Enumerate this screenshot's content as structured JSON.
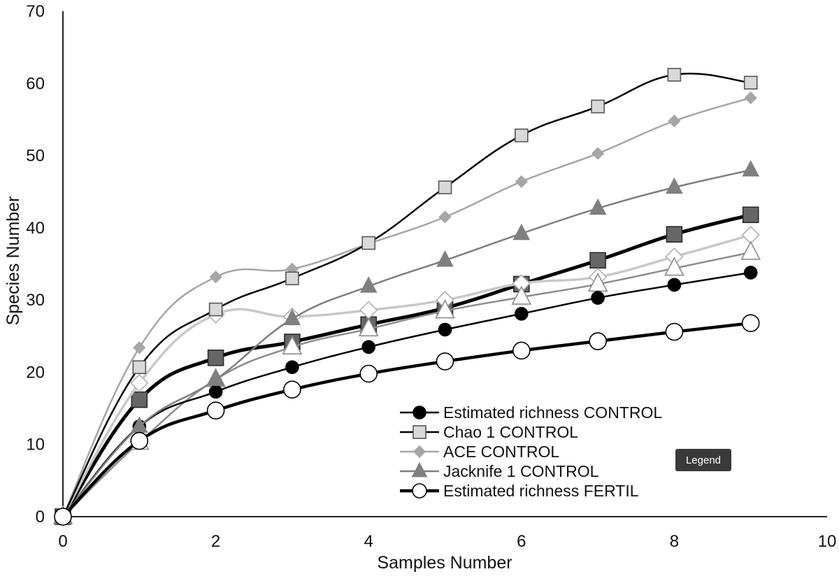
{
  "chart_data": {
    "type": "line",
    "title": "",
    "xlabel": "Samples Number",
    "ylabel": "Species Number",
    "xlim": [
      0,
      10
    ],
    "ylim": [
      0,
      70
    ],
    "xticks": [
      0,
      2,
      4,
      6,
      8,
      10
    ],
    "yticks": [
      0,
      10,
      20,
      30,
      40,
      50,
      60,
      70
    ],
    "grid": false,
    "legend_position": "bottom-right",
    "x": [
      0,
      1,
      2,
      3,
      4,
      5,
      6,
      7,
      8,
      9
    ],
    "series": [
      {
        "name": "Estimated richness  CONTROL",
        "legend": true,
        "marker": "circle",
        "line_color": "#000000",
        "marker_fill": "#000000",
        "marker_stroke": "#000000",
        "line_width": 2.5,
        "marker_size": 9,
        "values": [
          0,
          12.5,
          17.3,
          20.7,
          23.5,
          25.9,
          28.1,
          30.3,
          32.1,
          33.8
        ]
      },
      {
        "name": "Chao 1 CONTROL",
        "legend": true,
        "marker": "square",
        "line_color": "#000000",
        "marker_fill": "#d9d9d9",
        "marker_stroke": "#555555",
        "line_width": 2.5,
        "marker_size": 9,
        "values": [
          0,
          20.7,
          28.7,
          33.0,
          37.9,
          45.6,
          52.8,
          56.8,
          61.2,
          60.1
        ]
      },
      {
        "name": "ACE CONTROL",
        "legend": true,
        "marker": "diamond",
        "line_color": "#a6a6a6",
        "marker_fill": "#a6a6a6",
        "marker_stroke": "#a6a6a6",
        "line_width": 2.5,
        "marker_size": 8,
        "values": [
          0,
          23.4,
          33.2,
          34.3,
          37.8,
          41.5,
          46.4,
          50.3,
          54.8,
          58.0
        ]
      },
      {
        "name": "Jacknife 1 CONTROL",
        "legend": true,
        "marker": "triangle",
        "line_color": "#7f7f7f",
        "marker_fill": "#7f7f7f",
        "marker_stroke": "#7f7f7f",
        "line_width": 2.5,
        "marker_size": 11,
        "values": [
          0,
          12.5,
          19.0,
          27.4,
          31.9,
          35.5,
          39.2,
          42.7,
          45.6,
          48.0
        ]
      },
      {
        "name": "Estimated richness FERTIL",
        "legend": true,
        "marker": "circle",
        "line_color": "#000000",
        "marker_fill": "#ffffff",
        "marker_stroke": "#000000",
        "line_width": 4.5,
        "marker_size": 12,
        "values": [
          0,
          10.5,
          14.7,
          17.6,
          19.8,
          21.5,
          23.0,
          24.3,
          25.6,
          26.8
        ]
      },
      {
        "name": "",
        "legend": false,
        "marker": "square",
        "line_color": "#000000",
        "marker_fill": "#666666",
        "marker_stroke": "#2a2a2a",
        "line_width": 5,
        "marker_size": 11,
        "values": [
          0,
          16.2,
          22.0,
          24.2,
          26.6,
          28.9,
          32.2,
          35.5,
          39.1,
          41.8
        ]
      },
      {
        "name": "",
        "legend": false,
        "marker": "diamond",
        "line_color": "#c8c8c8",
        "marker_fill": "#ffffff",
        "marker_stroke": "#b0b0b0",
        "line_width": 3.5,
        "marker_size": 12,
        "values": [
          0,
          18.5,
          28.0,
          27.7,
          28.6,
          30.0,
          32.3,
          33.2,
          36.0,
          39.0
        ]
      },
      {
        "name": "",
        "legend": false,
        "marker": "triangle",
        "line_color": "#8c8c8c",
        "marker_fill": "#ffffff",
        "marker_stroke": "#8c8c8c",
        "line_width": 2.5,
        "marker_size": 13,
        "values": [
          0,
          10.3,
          19.0,
          23.5,
          26.0,
          28.5,
          30.4,
          32.2,
          34.4,
          36.6
        ]
      }
    ]
  },
  "tooltip": {
    "text": "Legend"
  }
}
